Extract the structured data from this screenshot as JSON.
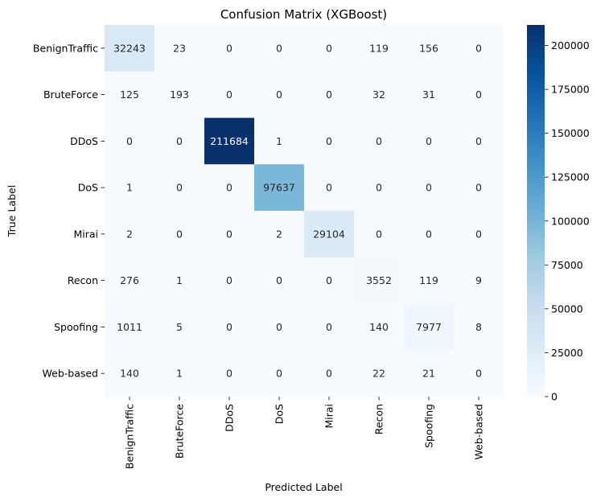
{
  "chart_data": {
    "type": "heatmap",
    "title": "Confusion Matrix (XGBoost)",
    "xlabel": "Predicted Label",
    "ylabel": "True Label",
    "x_categories": [
      "BenignTraffic",
      "BruteForce",
      "DDoS",
      "DoS",
      "Mirai",
      "Recon",
      "Spoofing",
      "Web-based"
    ],
    "y_categories": [
      "BenignTraffic",
      "BruteForce",
      "DDoS",
      "DoS",
      "Mirai",
      "Recon",
      "Spoofing",
      "Web-based"
    ],
    "values": [
      [
        32243,
        23,
        0,
        0,
        0,
        119,
        156,
        0
      ],
      [
        125,
        193,
        0,
        0,
        0,
        32,
        31,
        0
      ],
      [
        0,
        0,
        211684,
        1,
        0,
        0,
        0,
        0
      ],
      [
        1,
        0,
        0,
        97637,
        0,
        0,
        0,
        0
      ],
      [
        2,
        0,
        0,
        2,
        29104,
        0,
        0,
        0
      ],
      [
        276,
        1,
        0,
        0,
        0,
        3552,
        119,
        9
      ],
      [
        1011,
        5,
        0,
        0,
        0,
        140,
        7977,
        8
      ],
      [
        140,
        1,
        0,
        0,
        0,
        22,
        21,
        0
      ]
    ],
    "colormap": "Blues",
    "vmin": 0,
    "vmax": 211684,
    "colorbar_ticks": [
      0,
      25000,
      50000,
      75000,
      100000,
      125000,
      150000,
      175000,
      200000
    ]
  }
}
